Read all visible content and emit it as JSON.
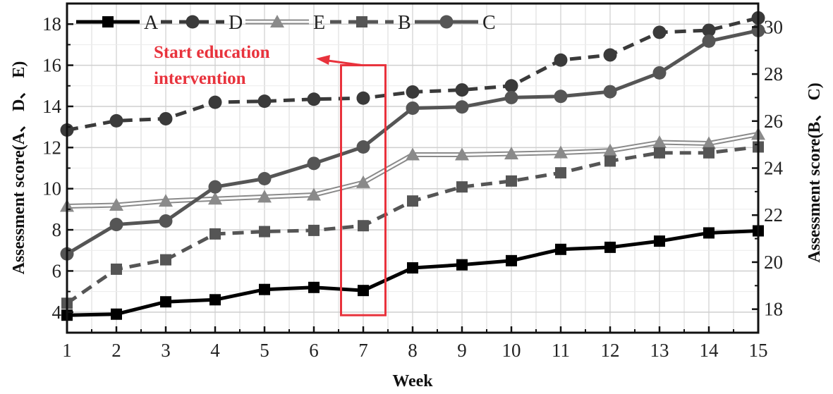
{
  "chart_data": {
    "type": "line",
    "x": [
      1,
      2,
      3,
      4,
      5,
      6,
      7,
      8,
      9,
      10,
      11,
      12,
      13,
      14,
      15
    ],
    "xlabel": "Week",
    "ylabel_left": "Assessment score(A、 D、 E)",
    "ylabel_right": "Assessment score(B、 C)",
    "xlim": [
      1,
      15
    ],
    "ylim_left": [
      3,
      19
    ],
    "ylim_right": [
      17,
      31
    ],
    "xticks": [
      1,
      2,
      3,
      4,
      5,
      6,
      7,
      8,
      9,
      10,
      11,
      12,
      13,
      14,
      15
    ],
    "yticks_left": [
      4,
      6,
      8,
      10,
      12,
      14,
      16,
      18
    ],
    "yticks_right": [
      18,
      20,
      22,
      24,
      26,
      28,
      30
    ],
    "grid": true,
    "legend_position": "top",
    "series": [
      {
        "name": "A",
        "axis": "left",
        "marker": "square",
        "line": "solid",
        "color": "#000000",
        "values": [
          3.85,
          3.9,
          4.5,
          4.6,
          5.1,
          5.2,
          5.05,
          6.15,
          6.3,
          6.5,
          7.05,
          7.15,
          7.45,
          7.85,
          7.95
        ]
      },
      {
        "name": "D",
        "axis": "left",
        "marker": "circle",
        "line": "dashed",
        "color": "#3a3a3a",
        "values": [
          12.85,
          13.3,
          13.4,
          14.2,
          14.25,
          14.35,
          14.4,
          14.7,
          14.8,
          15.0,
          16.25,
          16.5,
          17.6,
          17.7,
          18.3
        ]
      },
      {
        "name": "E",
        "axis": "left",
        "marker": "triangle",
        "line": "double",
        "color": "#8a8a8a",
        "values": [
          9.15,
          9.2,
          9.4,
          9.5,
          9.6,
          9.7,
          10.3,
          11.65,
          11.65,
          11.7,
          11.75,
          11.85,
          12.25,
          12.2,
          12.65
        ]
      },
      {
        "name": "B",
        "axis": "right",
        "marker": "square",
        "line": "dashed",
        "color": "#555555",
        "values": [
          18.25,
          19.7,
          20.1,
          21.2,
          21.3,
          21.35,
          21.55,
          22.6,
          23.2,
          23.45,
          23.8,
          24.3,
          24.65,
          24.65,
          24.9
        ]
      },
      {
        "name": "C",
        "axis": "right",
        "marker": "circle",
        "line": "solid",
        "color": "#555555",
        "values": [
          20.35,
          21.6,
          21.75,
          23.2,
          23.55,
          24.2,
          24.9,
          26.55,
          26.6,
          27.0,
          27.05,
          27.25,
          28.05,
          29.4,
          29.85
        ]
      }
    ],
    "annotation": {
      "text_line1": "Start education",
      "text_line2": "intervention",
      "color": "#e8323c",
      "highlight_week": 7
    }
  }
}
